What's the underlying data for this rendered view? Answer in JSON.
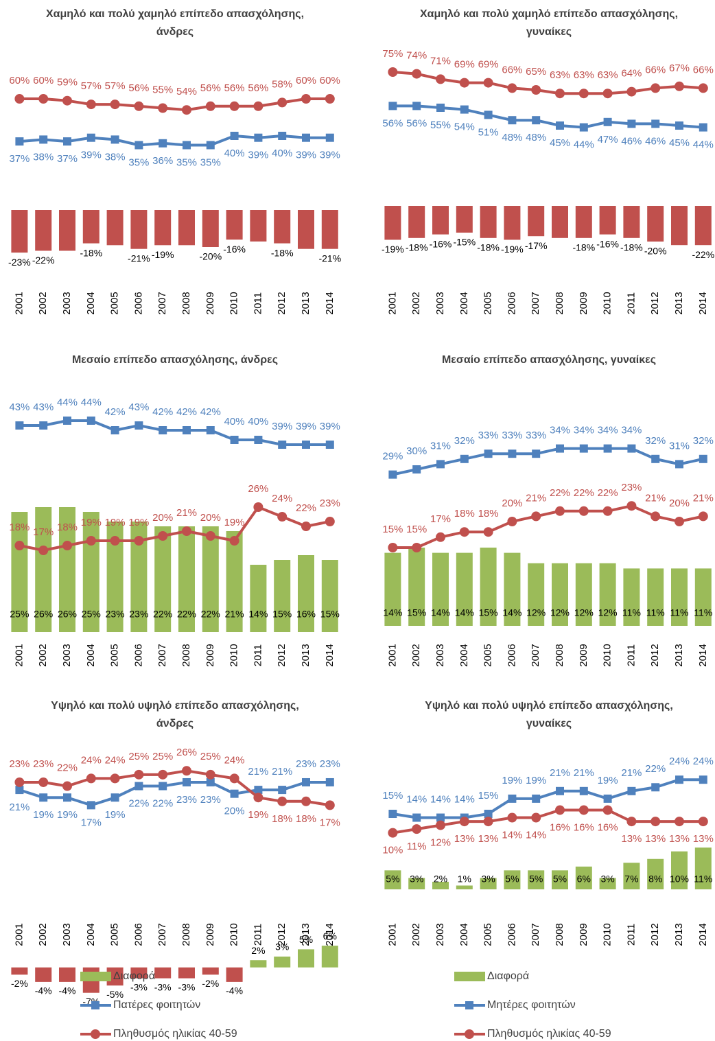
{
  "chart_data": [
    {
      "type": "combo",
      "title": "Χαμηλό και πολύ χαμηλό επίπεδο απασχόλησης, άνδρες",
      "categories": [
        "2001",
        "2002",
        "2003",
        "2004",
        "2005",
        "2006",
        "2007",
        "2008",
        "2009",
        "2010",
        "2011",
        "2012",
        "2013",
        "2014"
      ],
      "ylim": [
        -30,
        80
      ],
      "series": [
        {
          "kind": "bar",
          "color": "#c0504d",
          "values": [
            -23,
            -22,
            -22,
            -18,
            -19,
            -21,
            -19,
            -19,
            -20,
            -16,
            -17,
            -18,
            -21,
            -21
          ],
          "value_labels": [
            "-23%",
            "-22%",
            null,
            "-18%",
            null,
            "-21%",
            "-19%",
            null,
            "-20%",
            "-16%",
            null,
            "-18%",
            null,
            "-21%"
          ]
        },
        {
          "kind": "line",
          "marker": "square",
          "color": "#4f81bd",
          "values": [
            37,
            38,
            37,
            39,
            38,
            35,
            36,
            35,
            35,
            40,
            39,
            40,
            39,
            39
          ],
          "value_labels": [
            "37%",
            "38%",
            "37%",
            "39%",
            "38%",
            "35%",
            "36%",
            "35%",
            "35%",
            "40%",
            "39%",
            "40%",
            "39%",
            "39%"
          ]
        },
        {
          "kind": "line",
          "marker": "circle",
          "color": "#c0504d",
          "values": [
            60,
            60,
            59,
            57,
            57,
            56,
            55,
            54,
            56,
            56,
            56,
            58,
            60,
            60
          ],
          "value_labels": [
            "60%",
            "60%",
            "59%",
            "57%",
            "57%",
            "56%",
            "55%",
            "54%",
            "56%",
            "56%",
            "56%",
            "58%",
            "60%",
            "60%"
          ]
        }
      ]
    },
    {
      "type": "combo",
      "title": "Χαμηλό και πολύ χαμηλό επίπεδο απασχόλησης, γυναίκες",
      "categories": [
        "2001",
        "2002",
        "2003",
        "2004",
        "2005",
        "2006",
        "2007",
        "2008",
        "2009",
        "2010",
        "2011",
        "2012",
        "2013",
        "2014"
      ],
      "ylim": [
        -30,
        80
      ],
      "series": [
        {
          "kind": "bar",
          "color": "#c0504d",
          "values": [
            -19,
            -18,
            -16,
            -15,
            -18,
            -19,
            -17,
            -18,
            -18,
            -16,
            -18,
            -20,
            -22,
            -22
          ],
          "value_labels": [
            "-19%",
            "-18%",
            "-16%",
            "-15%",
            "-18%",
            "-19%",
            "-17%",
            null,
            "-18%",
            "-16%",
            "-18%",
            "-20%",
            null,
            "-22%"
          ]
        },
        {
          "kind": "line",
          "marker": "square",
          "color": "#4f81bd",
          "values": [
            56,
            56,
            55,
            54,
            51,
            48,
            48,
            45,
            44,
            47,
            46,
            46,
            45,
            44
          ],
          "value_labels": [
            "56%",
            "56%",
            "55%",
            "54%",
            "51%",
            "48%",
            "48%",
            "45%",
            "44%",
            "47%",
            "46%",
            "46%",
            "45%",
            "44%"
          ]
        },
        {
          "kind": "line",
          "marker": "circle",
          "color": "#c0504d",
          "values": [
            75,
            74,
            71,
            69,
            69,
            66,
            65,
            63,
            63,
            63,
            64,
            66,
            67,
            66
          ],
          "value_labels": [
            "75%",
            "74%",
            "71%",
            "69%",
            "69%",
            "66%",
            "65%",
            "63%",
            "63%",
            "63%",
            "64%",
            "66%",
            "67%",
            "66%"
          ]
        }
      ]
    },
    {
      "type": "combo",
      "title": "Μεσαίο επίπεδο απασχόλησης, άνδρες",
      "categories": [
        "2001",
        "2002",
        "2003",
        "2004",
        "2005",
        "2006",
        "2007",
        "2008",
        "2009",
        "2010",
        "2011",
        "2012",
        "2013",
        "2014"
      ],
      "ylim": [
        0,
        50
      ],
      "series": [
        {
          "kind": "bar",
          "color": "#9bbb59",
          "values": [
            25,
            26,
            26,
            25,
            23,
            23,
            22,
            22,
            22,
            21,
            14,
            15,
            16,
            15
          ],
          "value_labels": [
            "25%",
            "26%",
            "26%",
            "25%",
            "23%",
            "23%",
            "22%",
            "22%",
            "22%",
            "21%",
            "14%",
            "15%",
            "16%",
            "15%"
          ]
        },
        {
          "kind": "line",
          "marker": "square",
          "color": "#4f81bd",
          "values": [
            43,
            43,
            44,
            44,
            42,
            43,
            42,
            42,
            42,
            40,
            40,
            39,
            39,
            39
          ],
          "value_labels": [
            "43%",
            "43%",
            "44%",
            "44%",
            "42%",
            "43%",
            "42%",
            "42%",
            "42%",
            "40%",
            "40%",
            "39%",
            "39%",
            "39%"
          ]
        },
        {
          "kind": "line",
          "marker": "circle",
          "color": "#c0504d",
          "values": [
            18,
            17,
            18,
            19,
            19,
            19,
            20,
            21,
            20,
            19,
            26,
            24,
            22,
            23
          ],
          "value_labels": [
            "18%",
            "17%",
            "18%",
            "19%",
            "19%",
            "19%",
            "20%",
            "21%",
            "20%",
            "19%",
            "26%",
            "24%",
            "22%",
            "23%"
          ]
        }
      ]
    },
    {
      "type": "combo",
      "title": "Μεσαίο επίπεδο απασχόλησης, γυναίκες",
      "categories": [
        "2001",
        "2002",
        "2003",
        "2004",
        "2005",
        "2006",
        "2007",
        "2008",
        "2009",
        "2010",
        "2011",
        "2012",
        "2013",
        "2014"
      ],
      "ylim": [
        0,
        45
      ],
      "series": [
        {
          "kind": "bar",
          "color": "#9bbb59",
          "values": [
            14,
            15,
            14,
            14,
            15,
            14,
            12,
            12,
            12,
            12,
            11,
            11,
            11,
            11
          ],
          "value_labels": [
            "14%",
            "15%",
            "14%",
            "14%",
            "15%",
            "14%",
            "12%",
            "12%",
            "12%",
            "12%",
            "11%",
            "11%",
            "11%",
            "11%"
          ]
        },
        {
          "kind": "line",
          "marker": "square",
          "color": "#4f81bd",
          "values": [
            29,
            30,
            31,
            32,
            33,
            33,
            33,
            34,
            34,
            34,
            34,
            32,
            31,
            32
          ],
          "value_labels": [
            "29%",
            "30%",
            "31%",
            "32%",
            "33%",
            "33%",
            "33%",
            "34%",
            "34%",
            "34%",
            "34%",
            "32%",
            "31%",
            "32%"
          ]
        },
        {
          "kind": "line",
          "marker": "circle",
          "color": "#c0504d",
          "values": [
            15,
            15,
            17,
            18,
            18,
            20,
            21,
            22,
            22,
            22,
            23,
            21,
            20,
            21
          ],
          "value_labels": [
            "15%",
            "15%",
            "17%",
            "18%",
            "18%",
            "20%",
            "21%",
            "22%",
            "22%",
            "22%",
            "23%",
            "21%",
            "20%",
            "21%"
          ]
        }
      ]
    },
    {
      "type": "combo",
      "title": "Υψηλό και πολύ υψηλό επίπεδο απασχόλησης, άνδρες",
      "categories": [
        "2001",
        "2002",
        "2003",
        "2004",
        "2005",
        "2006",
        "2007",
        "2008",
        "2009",
        "2010",
        "2011",
        "2012",
        "2013",
        "2014"
      ],
      "ylim": [
        0,
        30
      ],
      "y2lim": [
        -8,
        10
      ],
      "series": [
        {
          "name": "Διαφορά",
          "kind": "bar",
          "axis": "y2",
          "color": "#c0504d",
          "positive_color": "#9bbb59",
          "values": [
            -2,
            -4,
            -4,
            -7,
            -5,
            -3,
            -3,
            -3,
            -2,
            -4,
            2,
            3,
            5,
            6
          ],
          "value_labels": [
            "-2%",
            "-4%",
            "-4%",
            "-7%",
            "-5%",
            "-3%",
            "-3%",
            "-3%",
            "-2%",
            "-4%",
            "2%",
            "3%",
            "5%",
            "6%"
          ]
        },
        {
          "name": "Πατέρες φοιτητών",
          "kind": "line",
          "marker": "square",
          "color": "#4f81bd",
          "values": [
            21,
            19,
            19,
            17,
            19,
            22,
            22,
            23,
            23,
            20,
            21,
            21,
            23,
            23
          ],
          "value_labels": [
            "21%",
            "19%",
            "19%",
            "17%",
            "19%",
            "22%",
            "22%",
            "23%",
            "23%",
            "20%",
            "21%",
            "21%",
            "23%",
            "23%"
          ]
        },
        {
          "name": "Πληθυσμός ηλικίας 40-59",
          "kind": "line",
          "marker": "circle",
          "color": "#c0504d",
          "values": [
            23,
            23,
            22,
            24,
            24,
            25,
            25,
            26,
            25,
            24,
            19,
            18,
            18,
            17
          ],
          "value_labels": [
            "23%",
            "23%",
            "22%",
            "24%",
            "24%",
            "25%",
            "25%",
            "26%",
            "25%",
            "24%",
            "19%",
            "18%",
            "18%",
            "17%"
          ]
        }
      ]
    },
    {
      "type": "combo",
      "title": "Υψηλό και πολύ υψηλό επίπεδο απασχόλησης, γυναίκες",
      "categories": [
        "2001",
        "2002",
        "2003",
        "2004",
        "2005",
        "2006",
        "2007",
        "2008",
        "2009",
        "2010",
        "2011",
        "2012",
        "2013",
        "2014"
      ],
      "ylim": [
        0,
        30
      ],
      "y2lim": [
        0,
        15
      ],
      "series": [
        {
          "name": "Διαφορά",
          "kind": "bar",
          "axis": "y2",
          "color": "#9bbb59",
          "values": [
            5,
            3,
            2,
            1,
            3,
            5,
            5,
            5,
            6,
            3,
            7,
            8,
            10,
            11
          ],
          "value_labels": [
            "5%",
            "3%",
            "2%",
            "1%",
            "3%",
            "5%",
            "5%",
            "5%",
            "6%",
            "3%",
            "7%",
            "8%",
            "10%",
            "11%"
          ]
        },
        {
          "name": "Μητέρες φοιτητών",
          "kind": "line",
          "marker": "square",
          "color": "#4f81bd",
          "values": [
            15,
            14,
            14,
            14,
            15,
            19,
            19,
            21,
            21,
            19,
            21,
            22,
            24,
            24
          ],
          "value_labels": [
            "15%",
            "14%",
            "14%",
            "14%",
            "15%",
            "19%",
            "19%",
            "21%",
            "21%",
            "19%",
            "21%",
            "22%",
            "24%",
            "24%"
          ]
        },
        {
          "name": "Πληθυσμός ηλικίας 40-59",
          "kind": "line",
          "marker": "circle",
          "color": "#c0504d",
          "values": [
            10,
            11,
            12,
            13,
            13,
            14,
            14,
            16,
            16,
            16,
            13,
            13,
            13,
            13
          ],
          "value_labels": [
            "10%",
            "11%",
            "12%",
            "13%",
            "13%",
            "14%",
            "14%",
            "16%",
            "16%",
            "16%",
            "13%",
            "13%",
            "13%",
            "13%"
          ]
        }
      ]
    }
  ]
}
